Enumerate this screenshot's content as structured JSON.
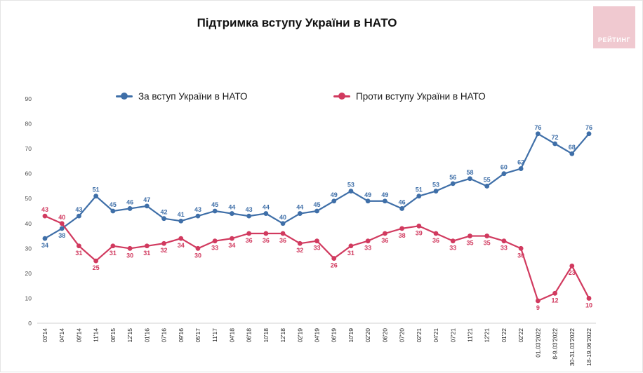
{
  "page": {
    "title": "Підтримка вступу України в НАТО"
  },
  "logo": {
    "text": "РЕЙТИНГ",
    "bg_color": "#f0c9d0",
    "text_color": "#ffffff"
  },
  "legend": [
    {
      "label": "За вступ України в НАТО",
      "color": "#3f6fa8"
    },
    {
      "label": "Проти вступу України в НАТО",
      "color": "#d13a5f"
    }
  ],
  "chart_data": {
    "type": "line",
    "title": "Підтримка вступу України в НАТО",
    "x": [
      "03'14",
      "04'14",
      "09'14",
      "11'14",
      "08'15",
      "12'15",
      "01'16",
      "07'16",
      "09'16",
      "05'17",
      "11'17",
      "04'18",
      "06'18",
      "10'18",
      "12'18",
      "02'19",
      "04'19",
      "06'19",
      "10'19",
      "02'20",
      "06'20",
      "07'20",
      "02'21",
      "04'21",
      "07'21",
      "11'21",
      "12'21",
      "01'22",
      "02'22",
      "01.03'2022",
      "8-9.03'2022",
      "30-31.03'2022",
      "18-19.06'2022"
    ],
    "series": [
      {
        "id": "for",
        "name": "За вступ України в НАТО",
        "color": "#3f6fa8",
        "values": [
          34,
          38,
          43,
          51,
          45,
          46,
          47,
          42,
          41,
          43,
          45,
          44,
          43,
          44,
          40,
          44,
          45,
          49,
          53,
          49,
          49,
          46,
          51,
          53,
          56,
          58,
          55,
          60,
          62,
          76,
          72,
          68,
          76
        ]
      },
      {
        "id": "against",
        "name": "Проти вступу України в НАТО",
        "color": "#d13a5f",
        "values": [
          43,
          40,
          31,
          25,
          31,
          30,
          31,
          32,
          34,
          30,
          33,
          34,
          36,
          36,
          36,
          32,
          33,
          26,
          31,
          33,
          36,
          38,
          39,
          36,
          33,
          35,
          35,
          33,
          30,
          9,
          12,
          23,
          10
        ]
      }
    ],
    "ylim": [
      0,
      90
    ],
    "yticks": [
      0,
      10,
      20,
      30,
      40,
      50,
      60,
      70,
      80,
      90
    ],
    "grid": false,
    "legend_position": "top",
    "value_labels": true
  }
}
